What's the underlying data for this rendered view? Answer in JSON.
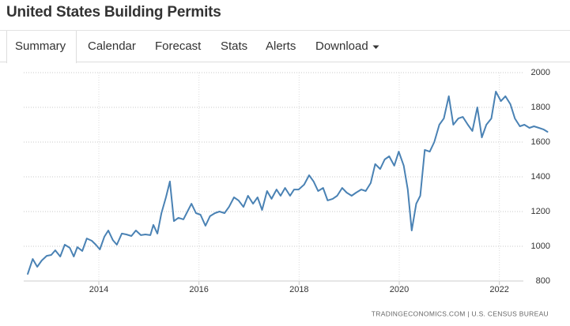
{
  "header": {
    "title": "United States Building Permits"
  },
  "tabs": [
    "Summary",
    "Calendar",
    "Forecast",
    "Stats",
    "Alerts",
    "Download"
  ],
  "chart_data": {
    "type": "line",
    "x": [
      2012.58,
      2012.68,
      2012.77,
      2012.86,
      2012.96,
      2013.05,
      2013.13,
      2013.23,
      2013.32,
      2013.42,
      2013.5,
      2013.57,
      2013.67,
      2013.76,
      2013.86,
      2013.94,
      2014.02,
      2014.11,
      2014.19,
      2014.28,
      2014.36,
      2014.46,
      2014.55,
      2014.65,
      2014.74,
      2014.84,
      2014.93,
      2015.03,
      2015.09,
      2015.17,
      2015.25,
      2015.34,
      2015.42,
      2015.5,
      2015.59,
      2015.69,
      2015.77,
      2015.85,
      2015.94,
      2016.03,
      2016.13,
      2016.22,
      2016.32,
      2016.41,
      2016.51,
      2016.6,
      2016.7,
      2016.79,
      2016.89,
      2016.98,
      2017.08,
      2017.17,
      2017.26,
      2017.36,
      2017.45,
      2017.55,
      2017.63,
      2017.72,
      2017.82,
      2017.9,
      2017.99,
      2018.1,
      2018.2,
      2018.29,
      2018.38,
      2018.48,
      2018.57,
      2018.67,
      2018.76,
      2018.86,
      2018.95,
      2019.05,
      2019.14,
      2019.24,
      2019.33,
      2019.43,
      2019.52,
      2019.62,
      2019.71,
      2019.8,
      2019.9,
      2019.99,
      2020.09,
      2020.17,
      2020.25,
      2020.34,
      2020.42,
      2020.51,
      2020.61,
      2020.7,
      2020.8,
      2020.89,
      2020.99,
      2021.08,
      2021.18,
      2021.27,
      2021.37,
      2021.46,
      2021.56,
      2021.65,
      2021.74,
      2021.84,
      2021.93,
      2022.03,
      2022.12,
      2022.22,
      2022.31,
      2022.41,
      2022.5,
      2022.6,
      2022.69,
      2022.79,
      2022.88,
      2022.96
    ],
    "series": [
      {
        "color": "#4a82b4",
        "values": [
          841,
          927,
          882,
          918,
          945,
          950,
          977,
          941,
          1009,
          991,
          941,
          995,
          973,
          1045,
          1032,
          1009,
          982,
          1055,
          1091,
          1036,
          1009,
          1073,
          1068,
          1059,
          1091,
          1064,
          1068,
          1064,
          1123,
          1073,
          1191,
          1282,
          1373,
          1145,
          1164,
          1155,
          1200,
          1245,
          1191,
          1182,
          1118,
          1173,
          1191,
          1200,
          1191,
          1227,
          1282,
          1264,
          1227,
          1291,
          1245,
          1282,
          1209,
          1318,
          1273,
          1327,
          1291,
          1336,
          1291,
          1327,
          1327,
          1355,
          1409,
          1373,
          1318,
          1336,
          1264,
          1273,
          1291,
          1336,
          1309,
          1291,
          1309,
          1327,
          1318,
          1364,
          1473,
          1445,
          1500,
          1518,
          1464,
          1545,
          1464,
          1327,
          1091,
          1245,
          1291,
          1555,
          1545,
          1600,
          1700,
          1736,
          1864,
          1700,
          1736,
          1745,
          1700,
          1664,
          1800,
          1627,
          1700,
          1736,
          1891,
          1836,
          1864,
          1818,
          1736,
          1691,
          1700,
          1682,
          1691,
          1682,
          1673,
          1659
        ]
      }
    ],
    "xlim": [
      2012.5,
      2023
    ],
    "xticks": [
      2014,
      2016,
      2018,
      2020,
      2022
    ],
    "ylim": [
      800,
      2000
    ],
    "yticks": [
      800,
      1000,
      1200,
      1400,
      1600,
      1800,
      2000
    ],
    "grid": true,
    "source": "TRADINGECONOMICS.COM  |  U.S. CENSUS BUREAU"
  }
}
